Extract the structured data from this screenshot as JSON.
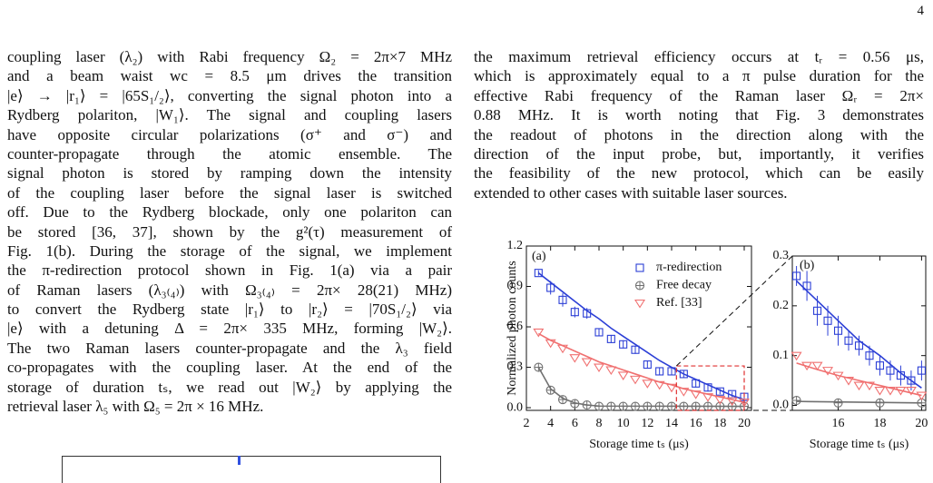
{
  "page_number": "4",
  "left_column": [
    "coupling laser (λ₂) with Rabi frequency Ω₂ = 2π×7 MHz",
    "and a beam waist wc = 8.5 μm drives the transition",
    "|e⟩ → |r₁⟩ = |65S₁/₂⟩, converting the signal photon into a",
    "Rydberg polariton, |W₁⟩. The signal and coupling lasers",
    "have opposite circular polarizations (σ⁺ and σ⁻) and",
    "counter-propagate through the atomic ensemble.   The",
    "signal photon is stored by ramping down the intensity",
    "of the coupling laser before the signal laser is switched",
    "off. Due to the Rydberg blockade, only one polariton can",
    "be stored [36, 37], shown by the g²(τ) measurement of",
    "Fig. 1(b). During the storage of the signal, we implement",
    "the π-redirection protocol shown in Fig. 1(a) via a pair",
    "of Raman lasers (λ₃₍₄₎) with Ω₃₍₄₎ = 2π× 28(21) MHz)",
    "to convert the Rydberg state |r₁⟩ to |r₂⟩ = |70S₁/₂⟩ via",
    "|e⟩ with a detuning Δ = 2π× 335 MHz, forming |W₂⟩.",
    "The two Raman lasers counter-propagate and the λ₃ field",
    "co-propagates with the coupling laser. At the end of the",
    "storage of duration tₛ, we read out |W₂⟩ by applying the",
    "retrieval laser λ₅ with Ω₅ = 2π × 16 MHz."
  ],
  "right_column": [
    "the maximum retrieval efficiency occurs at tᵣ = 0.56 μs,",
    "which is approximately equal to a π pulse duration for the",
    "effective Rabi frequency of the Raman laser Ωᵣ = 2π×",
    "0.88 MHz. It is worth noting that Fig. 3 demonstrates",
    "the readout of photons in the direction along with the",
    "direction of the input probe, but, importantly, it verifies",
    "the feasibility of the new protocol, which can be easily",
    "extended to other cases with suitable laser sources."
  ],
  "chart_data": [
    {
      "type": "scatter",
      "panel_label": "(a)",
      "xlabel": "Storage time tₛ (μs)",
      "ylabel": "Normalized photon counts",
      "xlim": [
        2,
        20.6
      ],
      "ylim": [
        -0.02,
        1.2
      ],
      "xticks": [
        2,
        4,
        6,
        8,
        10,
        12,
        14,
        16,
        18,
        20
      ],
      "yticks": [
        {
          "value": 0,
          "label": "0.0"
        },
        0.3,
        0.6,
        0.9,
        1.2
      ],
      "legend": "upper right",
      "zoom_box": {
        "xlim": [
          14.4,
          20
        ],
        "ylim": [
          -0.02,
          0.31
        ],
        "color": "#e03030"
      },
      "series": [
        {
          "name": "π-redirection",
          "color": "#2c3fd6",
          "marker": "square",
          "x": [
            3,
            4,
            5,
            6,
            7,
            8,
            9,
            10,
            11,
            12,
            13,
            14,
            15,
            16,
            17,
            18,
            19,
            20
          ],
          "values": [
            1.0,
            0.89,
            0.8,
            0.71,
            0.7,
            0.56,
            0.51,
            0.47,
            0.43,
            0.32,
            0.27,
            0.27,
            0.25,
            0.18,
            0.15,
            0.12,
            0.1,
            0.08
          ],
          "errors": [
            0.02,
            0.05,
            0.05,
            0.04,
            0.04,
            0.03,
            0.03,
            0.03,
            0.03,
            0.03,
            0.03,
            0.03,
            0.03,
            0.03,
            0.03,
            0.02,
            0.02,
            0.02
          ],
          "fit": {
            "x": [
              3,
              4,
              5,
              6,
              7,
              8,
              9,
              10,
              11,
              12,
              13,
              14,
              15,
              16,
              17,
              18,
              19,
              20
            ],
            "values": [
              1.0,
              0.93,
              0.86,
              0.79,
              0.72,
              0.66,
              0.59,
              0.53,
              0.47,
              0.41,
              0.35,
              0.3,
              0.25,
              0.21,
              0.17,
              0.13,
              0.09,
              0.06
            ]
          }
        },
        {
          "name": "Free decay",
          "color": "#707070",
          "marker": "circle",
          "x": [
            3,
            4,
            5,
            6,
            7,
            8,
            9,
            10,
            11,
            12,
            13,
            14,
            15,
            16,
            17,
            18,
            19,
            20
          ],
          "values": [
            0.3,
            0.13,
            0.06,
            0.03,
            0.02,
            0.01,
            0.01,
            0.01,
            0.01,
            0.01,
            0.01,
            0.01,
            0.01,
            0.01,
            0.01,
            0.01,
            0.01,
            0.01
          ],
          "fit": {
            "x": [
              3,
              4,
              5,
              6,
              7,
              8,
              20
            ],
            "values": [
              0.3,
              0.14,
              0.07,
              0.035,
              0.02,
              0.012,
              0.01
            ]
          }
        },
        {
          "name": "Ref. [33]",
          "color": "#f07070",
          "marker": "triangle",
          "x": [
            3,
            4,
            5,
            6,
            7,
            8,
            9,
            10,
            11,
            12,
            13,
            14,
            15,
            16,
            17,
            18,
            19,
            20
          ],
          "values": [
            0.56,
            0.48,
            0.44,
            0.37,
            0.34,
            0.3,
            0.28,
            0.24,
            0.21,
            0.18,
            0.17,
            0.15,
            0.12,
            0.1,
            0.08,
            0.06,
            0.05,
            0.04
          ],
          "fit": {
            "x": [
              3,
              4,
              5,
              6,
              7,
              8,
              9,
              10,
              11,
              12,
              13,
              14,
              15,
              16,
              17,
              18,
              19,
              20
            ],
            "values": [
              0.55,
              0.5,
              0.46,
              0.42,
              0.38,
              0.34,
              0.31,
              0.28,
              0.25,
              0.22,
              0.19,
              0.17,
              0.14,
              0.12,
              0.1,
              0.08,
              0.06,
              0.04
            ]
          }
        }
      ]
    },
    {
      "type": "scatter",
      "panel_label": "(b)",
      "xlabel": "Storage time tₛ (μs)",
      "xlim": [
        13.8,
        20.2
      ],
      "ylim": [
        -0.01,
        0.3
      ],
      "xticks": [
        16,
        18,
        20
      ],
      "yticks": [
        {
          "value": 0,
          "label": "0.0"
        },
        0.1,
        0.2,
        0.3
      ],
      "series": [
        {
          "color": "#2c3fd6",
          "marker": "square",
          "x": [
            14,
            14.5,
            15,
            15.5,
            16,
            16.5,
            17,
            17.5,
            18,
            18.5,
            19,
            19.5,
            20
          ],
          "values": [
            0.26,
            0.24,
            0.19,
            0.17,
            0.15,
            0.13,
            0.12,
            0.1,
            0.08,
            0.07,
            0.06,
            0.05,
            0.07
          ],
          "errors": [
            0.02,
            0.03,
            0.03,
            0.03,
            0.03,
            0.02,
            0.02,
            0.02,
            0.02,
            0.02,
            0.02,
            0.02,
            0.02
          ],
          "fit": {
            "x": [
              14,
              15,
              16,
              17,
              18,
              19,
              20
            ],
            "values": [
              0.25,
              0.21,
              0.17,
              0.13,
              0.1,
              0.065,
              0.035
            ]
          }
        },
        {
          "color": "#707070",
          "marker": "circle",
          "x": [
            14,
            16,
            18,
            20
          ],
          "values": [
            0.01,
            0.005,
            0.005,
            0.005
          ],
          "fit": {
            "x": [
              14,
              20
            ],
            "values": [
              0.008,
              0.005
            ]
          }
        },
        {
          "color": "#f07070",
          "marker": "triangle",
          "x": [
            14,
            14.5,
            15,
            15.5,
            16,
            16.5,
            17,
            17.5,
            18,
            18.5,
            19,
            19.5,
            20
          ],
          "values": [
            0.1,
            0.08,
            0.08,
            0.07,
            0.06,
            0.05,
            0.04,
            0.04,
            0.03,
            0.03,
            0.03,
            0.03,
            0.02
          ],
          "fit": {
            "x": [
              14,
              15,
              16,
              17,
              18,
              19,
              20
            ],
            "values": [
              0.085,
              0.072,
              0.06,
              0.05,
              0.04,
              0.03,
              0.02
            ]
          }
        }
      ]
    }
  ]
}
